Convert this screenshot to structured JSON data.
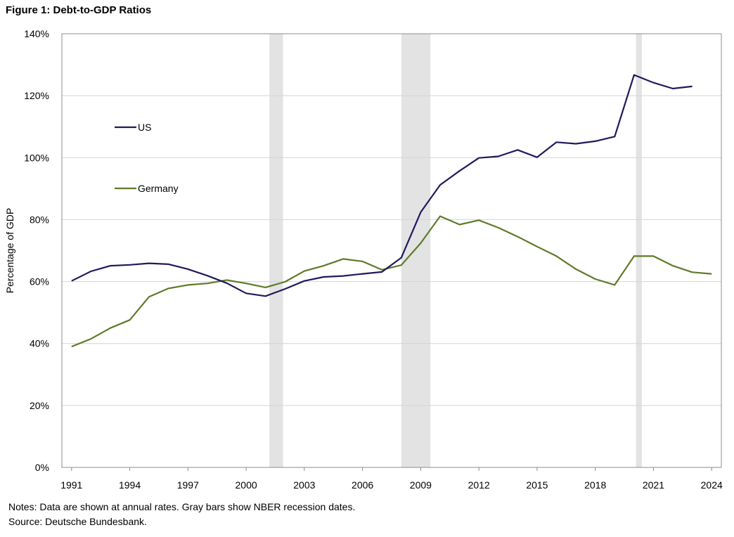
{
  "figure_title": "Figure 1: Debt-to-GDP Ratios",
  "notes": "Notes: Data are shown at annual rates. Gray bars show NBER recession dates.",
  "source": "Source: Deutsche Bundesbank.",
  "chart_data": {
    "type": "line",
    "title": "Figure 1: Debt-to-GDP Ratios",
    "xlabel": "",
    "ylabel": "Percentage of GDP",
    "xlim": [
      1990.5,
      2024.5
    ],
    "ylim": [
      0,
      140
    ],
    "x_ticks": [
      1991,
      1994,
      1997,
      2000,
      2003,
      2006,
      2009,
      2012,
      2015,
      2018,
      2021,
      2024
    ],
    "y_ticks": [
      0,
      20,
      40,
      60,
      80,
      100,
      120,
      140
    ],
    "y_tick_format": "percent",
    "grid": "horizontal",
    "legend": "inside, left",
    "recessions": [
      [
        2001.2,
        2001.9
      ],
      [
        2008.0,
        2009.5
      ],
      [
        2020.1,
        2020.4
      ]
    ],
    "recession_color": "#e3e3e3",
    "series": [
      {
        "name": "US",
        "color": "#1f1a5c",
        "x": [
          1991,
          1992,
          1993,
          1994,
          1995,
          1996,
          1997,
          1998,
          1999,
          2000,
          2001,
          2002,
          2003,
          2004,
          2005,
          2006,
          2007,
          2008,
          2009,
          2010,
          2011,
          2012,
          2013,
          2014,
          2015,
          2016,
          2017,
          2018,
          2019,
          2020,
          2021,
          2022,
          2023
        ],
        "values": [
          60.2,
          63.3,
          65.1,
          65.4,
          65.9,
          65.6,
          64.0,
          61.9,
          59.5,
          56.2,
          55.3,
          57.6,
          60.2,
          61.5,
          61.8,
          62.5,
          63.1,
          67.7,
          82.4,
          91.2,
          95.7,
          99.9,
          100.4,
          102.5,
          100.1,
          105.0,
          104.5,
          105.3,
          106.8,
          126.7,
          124.2,
          122.3,
          123.0
        ]
      },
      {
        "name": "Germany",
        "color": "#5f7a2a",
        "x": [
          1991,
          1992,
          1993,
          1994,
          1995,
          1996,
          1997,
          1998,
          1999,
          2000,
          2001,
          2002,
          2003,
          2004,
          2005,
          2006,
          2007,
          2008,
          2009,
          2010,
          2011,
          2012,
          2013,
          2014,
          2015,
          2016,
          2017,
          2018,
          2019,
          2020,
          2021,
          2022,
          2023,
          2024
        ],
        "values": [
          39.0,
          41.5,
          45.0,
          47.6,
          55.1,
          57.8,
          58.9,
          59.4,
          60.5,
          59.4,
          58.1,
          59.9,
          63.4,
          65.1,
          67.3,
          66.5,
          63.8,
          65.3,
          72.4,
          81.1,
          78.4,
          79.8,
          77.4,
          74.5,
          71.3,
          68.2,
          64.0,
          60.8,
          58.9,
          68.2,
          68.2,
          65.1,
          63.0,
          62.5
        ]
      }
    ]
  }
}
